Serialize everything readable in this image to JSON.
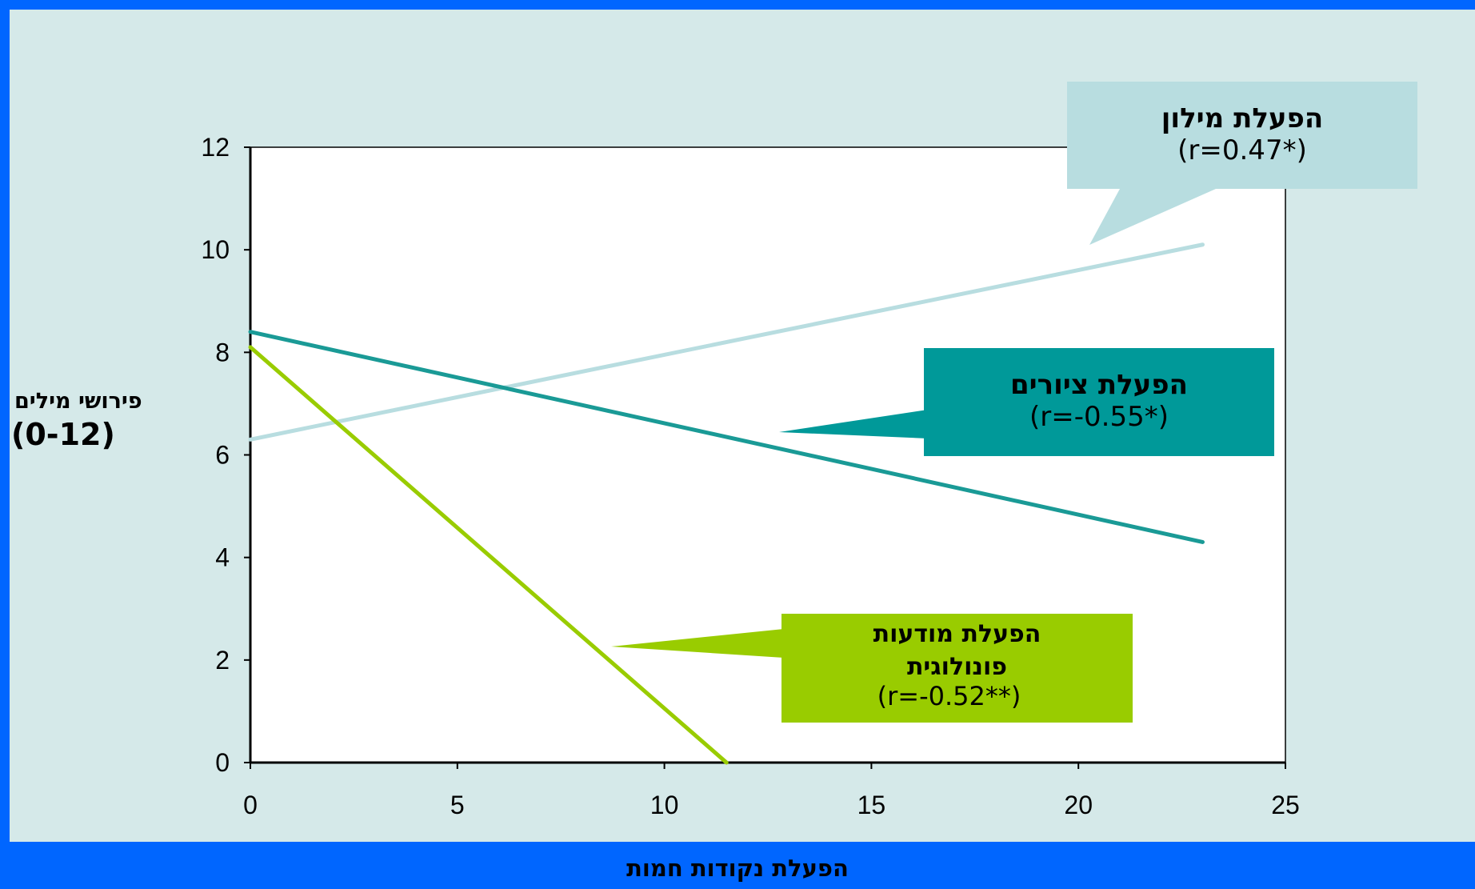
{
  "chart_data": {
    "type": "line",
    "title": "",
    "xlabel": "הפעלת נקודות חמות",
    "ylabel_line1": "פירושי מילים",
    "ylabel_line2": "(0-12)",
    "xlim": [
      0,
      25
    ],
    "ylim": [
      0,
      12
    ],
    "xticks": [
      "0",
      "5",
      "10",
      "15",
      "20",
      "25"
    ],
    "yticks": [
      "0",
      "2",
      "4",
      "6",
      "8",
      "10",
      "12"
    ],
    "grid": false,
    "series": [
      {
        "name": "הפעלת מילון",
        "corr": "(r=0.47*)",
        "color": "#b8dde0",
        "x": [
          0,
          23
        ],
        "y": [
          6.3,
          10.1
        ]
      },
      {
        "name": "הפעלת ציורים",
        "corr": "(r=-0.55*)",
        "color": "#1a9a96",
        "x": [
          0,
          23
        ],
        "y": [
          8.4,
          4.3
        ]
      },
      {
        "name": "הפעלת מודעות פונולוגית",
        "name_line1": "הפעלת מודעות",
        "name_line2": "פונולוגית",
        "corr": "(r=-0.52**)",
        "color": "#99cc00",
        "x": [
          0,
          11.5
        ],
        "y": [
          8.1,
          0
        ]
      }
    ]
  }
}
